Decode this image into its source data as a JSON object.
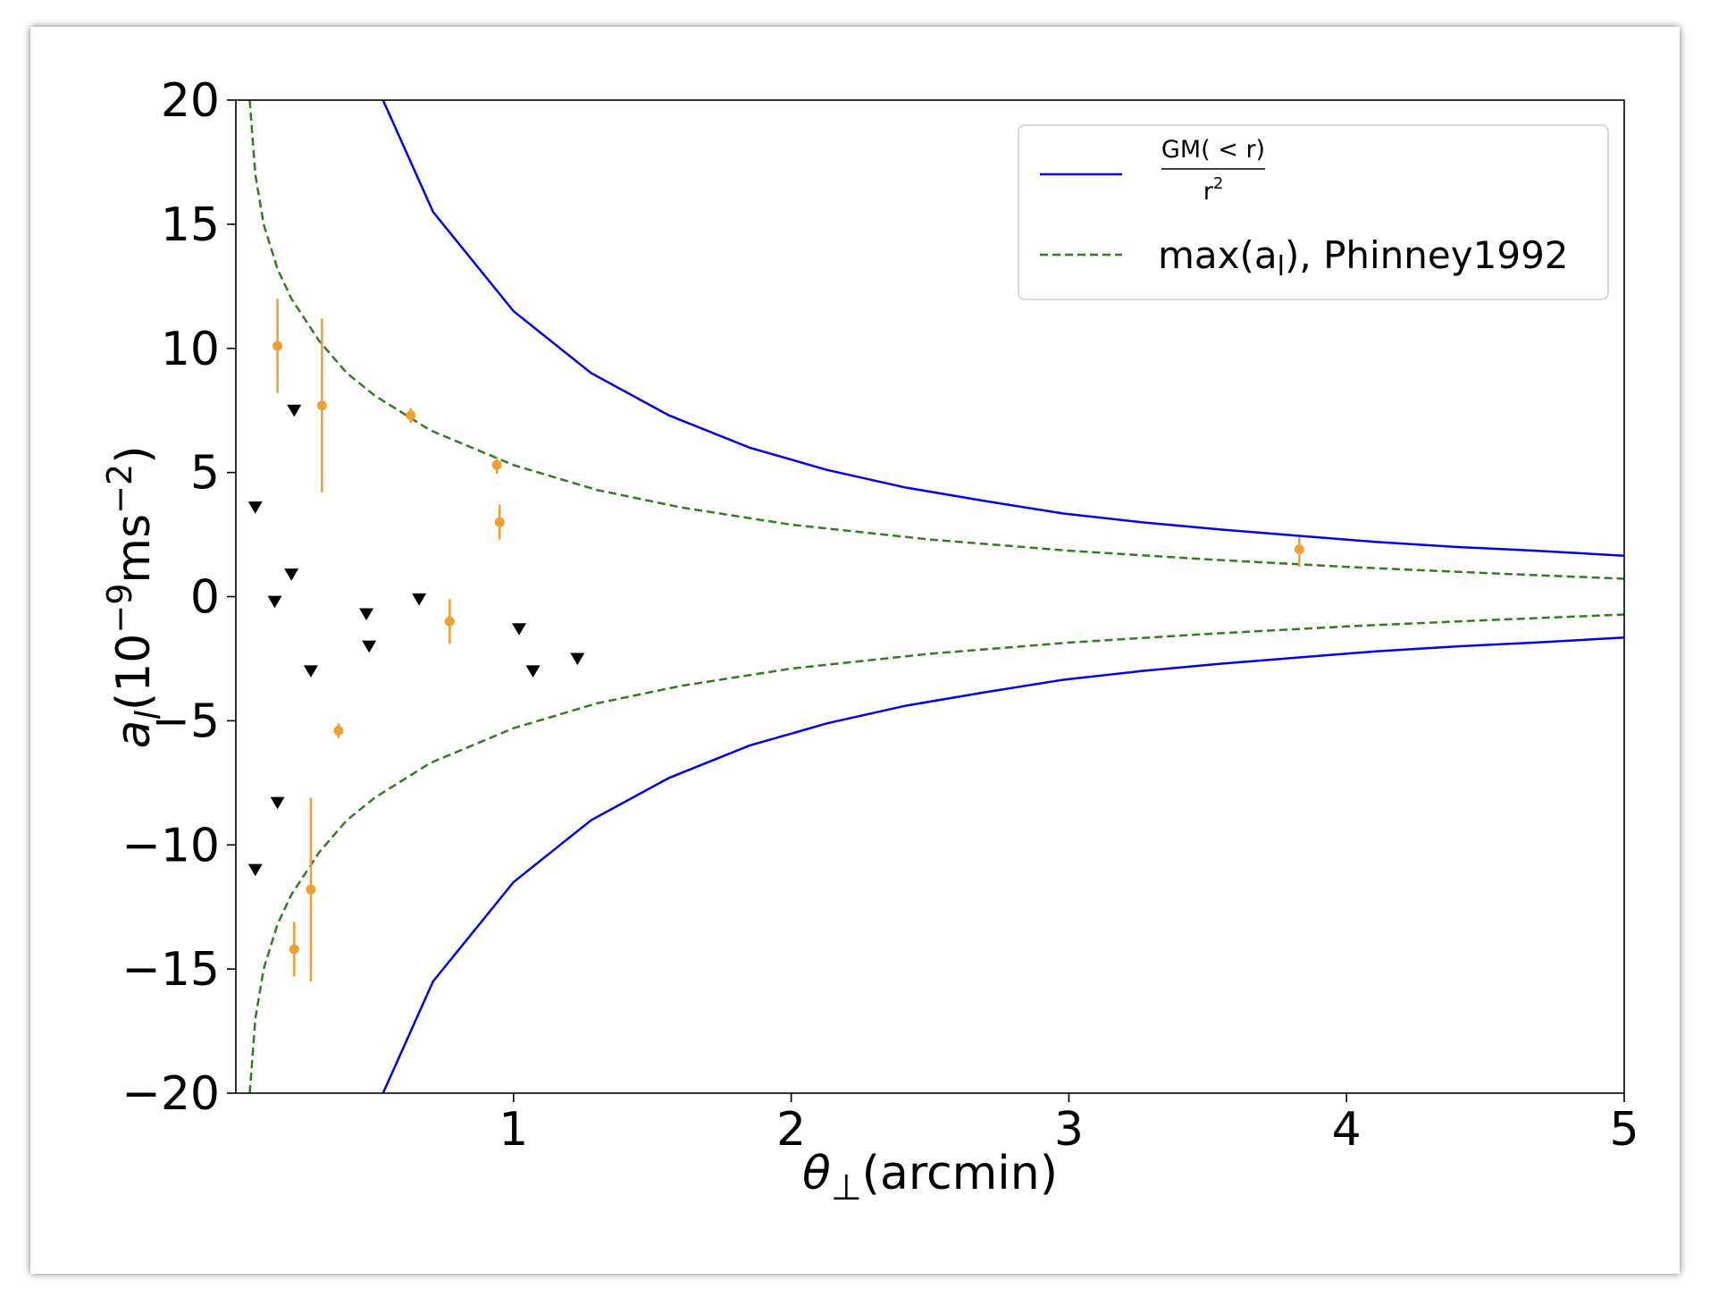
{
  "chart_data": {
    "type": "scatter",
    "xlabel": {
      "theta": "θ",
      "sub": "⊥",
      "rest": "(arcmin)"
    },
    "ylabel": {
      "a": "a",
      "sub": "l",
      "rest": "(10",
      "exp": "−9",
      "unit": "ms",
      "unit_exp": "−2",
      "close": ")"
    },
    "xlim": [
      0,
      5
    ],
    "ylim": [
      -20,
      20
    ],
    "x_ticks": [
      1,
      2,
      3,
      4,
      5
    ],
    "y_ticks": [
      20,
      15,
      10,
      5,
      0,
      -5,
      -10,
      -15,
      -20
    ],
    "x_tick_labels": [
      "1",
      "2",
      "3",
      "4",
      "5"
    ],
    "y_tick_labels": [
      "20",
      "15",
      "10",
      "5",
      "0",
      "−5",
      "−10",
      "−15",
      "−20"
    ],
    "grid": false,
    "legend_position": "top-right",
    "legend": {
      "gm_numerator": "GM( < r)",
      "gm_denominator": "r",
      "gm_denominator_exp": "2",
      "phinney_label_pre": "max(a",
      "phinney_label_sub": "l",
      "phinney_label_post": "), Phinney1992"
    },
    "colors": {
      "gm": "#0000ee",
      "phinney": "#2e7d1e",
      "measured": "#f0a030",
      "limits": "#000000"
    },
    "series": [
      {
        "name": "GM(<r)/r^2",
        "style": "solid",
        "mirror": true,
        "x": [
          0.53,
          0.71,
          1.0,
          1.28,
          1.56,
          1.85,
          2.13,
          2.41,
          2.7,
          2.98,
          3.26,
          3.55,
          3.83,
          4.11,
          4.4,
          4.68,
          5.0
        ],
        "y": [
          20.0,
          15.5,
          11.5,
          9.0,
          7.3,
          6.0,
          5.1,
          4.4,
          3.85,
          3.35,
          3.0,
          2.7,
          2.45,
          2.2,
          2.0,
          1.85,
          1.65
        ]
      },
      {
        "name": "max(a_l), Phinney1992",
        "style": "dashed",
        "mirror": true,
        "x": [
          0.05,
          0.07,
          0.1,
          0.15,
          0.2,
          0.3,
          0.4,
          0.5,
          0.7,
          1.0,
          1.3,
          1.6,
          2.0,
          2.5,
          3.0,
          3.5,
          4.0,
          4.5,
          5.0
        ],
        "y": [
          20.0,
          17.0,
          15.0,
          13.2,
          12.0,
          10.3,
          9.0,
          8.1,
          6.7,
          5.3,
          4.3,
          3.6,
          2.9,
          2.3,
          1.85,
          1.5,
          1.2,
          0.95,
          0.72
        ]
      }
    ],
    "measured_points": [
      {
        "x": 0.15,
        "y": 10.1,
        "err_low": 1.9,
        "err_high": 1.9
      },
      {
        "x": 0.31,
        "y": 7.7,
        "err_low": 3.5,
        "err_high": 3.5
      },
      {
        "x": 0.63,
        "y": 7.3,
        "err_low": 0.3,
        "err_high": 0.3
      },
      {
        "x": 0.94,
        "y": 5.3,
        "err_low": 0.35,
        "err_high": 0.35
      },
      {
        "x": 0.95,
        "y": 3.0,
        "err_low": 0.7,
        "err_high": 0.7
      },
      {
        "x": 3.83,
        "y": 1.9,
        "err_low": 0.7,
        "err_high": 0.5
      },
      {
        "x": 0.77,
        "y": -1.0,
        "err_low": 0.9,
        "err_high": 0.9
      },
      {
        "x": 0.37,
        "y": -5.4,
        "err_low": 0.3,
        "err_high": 0.3
      },
      {
        "x": 0.27,
        "y": -11.8,
        "err_low": 3.7,
        "err_high": 3.7
      },
      {
        "x": 0.21,
        "y": -14.2,
        "err_low": 1.1,
        "err_high": 1.1
      }
    ],
    "upper_limits": [
      {
        "x": 0.21,
        "y": 7.5
      },
      {
        "x": 0.07,
        "y": 3.6
      },
      {
        "x": 0.2,
        "y": 0.9
      },
      {
        "x": 0.14,
        "y": -0.2
      },
      {
        "x": 0.66,
        "y": -0.1
      },
      {
        "x": 0.47,
        "y": -0.7
      },
      {
        "x": 1.02,
        "y": -1.3
      },
      {
        "x": 0.48,
        "y": -2.0
      },
      {
        "x": 1.23,
        "y": -2.5
      },
      {
        "x": 0.27,
        "y": -3.0
      },
      {
        "x": 1.07,
        "y": -3.0
      },
      {
        "x": 0.15,
        "y": -8.3
      },
      {
        "x": 0.07,
        "y": -11.0
      }
    ]
  }
}
